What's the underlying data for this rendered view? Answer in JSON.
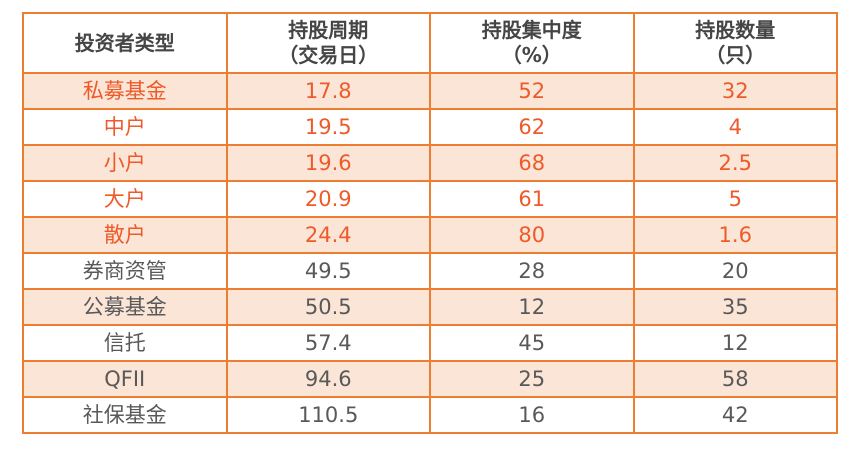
{
  "colors": {
    "border": "#ED7D31",
    "stripe_background": "#FBE5D6",
    "highlight_text": "#EE5A2A",
    "dark_text": "#595959",
    "header_text": "#454545"
  },
  "table": {
    "columns": [
      {
        "title": "投资者类型",
        "sub": ""
      },
      {
        "title": "持股周期",
        "sub": "（交易日）"
      },
      {
        "title": "持股集中度",
        "sub": "（%）"
      },
      {
        "title": "持股数量",
        "sub": "（只）"
      }
    ],
    "rows": [
      {
        "label": "私募基金",
        "values": [
          "17.8",
          "52",
          "32"
        ],
        "striped": true,
        "orange_text": true
      },
      {
        "label": "中户",
        "values": [
          "19.5",
          "62",
          "4"
        ],
        "striped": false,
        "orange_text": true
      },
      {
        "label": "小户",
        "values": [
          "19.6",
          "68",
          "2.5"
        ],
        "striped": true,
        "orange_text": true
      },
      {
        "label": "大户",
        "values": [
          "20.9",
          "61",
          "5"
        ],
        "striped": false,
        "orange_text": true
      },
      {
        "label": "散户",
        "values": [
          "24.4",
          "80",
          "1.6"
        ],
        "striped": true,
        "orange_text": true
      },
      {
        "label": "券商资管",
        "values": [
          "49.5",
          "28",
          "20"
        ],
        "striped": false,
        "orange_text": false
      },
      {
        "label": "公募基金",
        "values": [
          "50.5",
          "12",
          "35"
        ],
        "striped": true,
        "orange_text": false
      },
      {
        "label": "信托",
        "values": [
          "57.4",
          "45",
          "12"
        ],
        "striped": false,
        "orange_text": false
      },
      {
        "label": "QFII",
        "values": [
          "94.6",
          "25",
          "58"
        ],
        "striped": true,
        "orange_text": false
      },
      {
        "label": "社保基金",
        "values": [
          "110.5",
          "16",
          "42"
        ],
        "striped": false,
        "orange_text": false
      }
    ]
  },
  "chart_data": {
    "type": "table",
    "title": "",
    "columns": [
      "投资者类型",
      "持股周期（交易日）",
      "持股集中度（%）",
      "持股数量（只）"
    ],
    "rows": [
      [
        "私募基金",
        17.8,
        52,
        32
      ],
      [
        "中户",
        19.5,
        62,
        4
      ],
      [
        "小户",
        19.6,
        68,
        2.5
      ],
      [
        "大户",
        20.9,
        61,
        5
      ],
      [
        "散户",
        24.4,
        80,
        1.6
      ],
      [
        "券商资管",
        49.5,
        28,
        20
      ],
      [
        "公募基金",
        50.5,
        12,
        35
      ],
      [
        "信托",
        57.4,
        45,
        12
      ],
      [
        "QFII",
        94.6,
        25,
        58
      ],
      [
        "社保基金",
        110.5,
        16,
        42
      ]
    ],
    "highlighted_rows_orange_text": [
      "私募基金",
      "中户",
      "小户",
      "大户",
      "散户"
    ],
    "striped_rows": [
      "私募基金",
      "小户",
      "散户",
      "公募基金",
      "QFII"
    ]
  }
}
